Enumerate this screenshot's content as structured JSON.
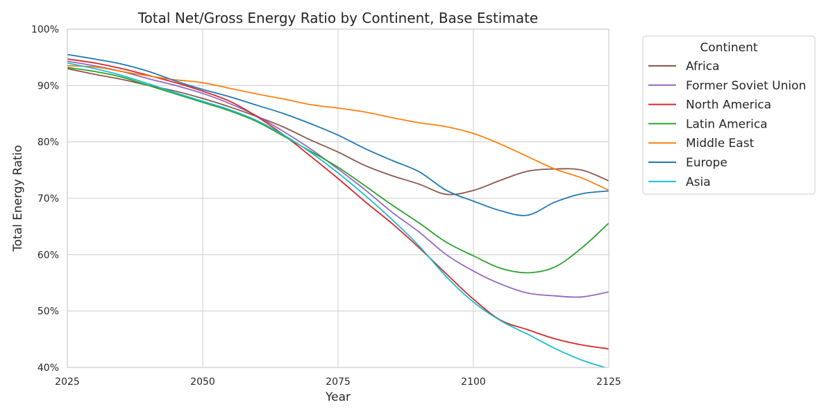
{
  "chart_data": {
    "type": "line",
    "title": "Total Net/Gross Energy Ratio by Continent, Base Estimate",
    "xlabel": "Year",
    "ylabel": "Total Energy Ratio",
    "xlim": [
      2025,
      2125
    ],
    "ylim": [
      0.4,
      1.0
    ],
    "xticks": [
      2025,
      2050,
      2075,
      2100,
      2125
    ],
    "xtick_labels": [
      "2025",
      "2050",
      "2075",
      "2100",
      "2125"
    ],
    "yticks": [
      0.4,
      0.5,
      0.6,
      0.7,
      0.8,
      0.9,
      1.0
    ],
    "ytick_labels": [
      "40%",
      "50%",
      "60%",
      "70%",
      "80%",
      "90%",
      "100%"
    ],
    "grid": true,
    "legend": {
      "title": "Continent",
      "placement": "outside-right"
    },
    "x": [
      2025,
      2030,
      2035,
      2040,
      2045,
      2050,
      2055,
      2060,
      2065,
      2070,
      2075,
      2080,
      2085,
      2090,
      2095,
      2100,
      2105,
      2110,
      2115,
      2120,
      2125
    ],
    "series": [
      {
        "name": "Africa",
        "color": "#8c564b",
        "values": [
          0.93,
          0.92,
          0.911,
          0.9,
          0.89,
          0.877,
          0.862,
          0.845,
          0.826,
          0.803,
          0.782,
          0.758,
          0.74,
          0.725,
          0.707,
          0.714,
          0.732,
          0.748,
          0.752,
          0.75,
          0.731
        ]
      },
      {
        "name": "Former Soviet Union",
        "color": "#9467bd",
        "values": [
          0.943,
          0.935,
          0.925,
          0.912,
          0.9,
          0.886,
          0.868,
          0.846,
          0.818,
          0.787,
          0.752,
          0.715,
          0.675,
          0.64,
          0.6,
          0.571,
          0.548,
          0.532,
          0.527,
          0.525,
          0.534
        ]
      },
      {
        "name": "North America",
        "color": "#d62728",
        "values": [
          0.947,
          0.94,
          0.93,
          0.918,
          0.905,
          0.89,
          0.872,
          0.845,
          0.812,
          0.774,
          0.735,
          0.694,
          0.655,
          0.612,
          0.566,
          0.521,
          0.484,
          0.467,
          0.451,
          0.44,
          0.433
        ]
      },
      {
        "name": "Latin America",
        "color": "#2ca02c",
        "values": [
          0.932,
          0.925,
          0.915,
          0.9,
          0.885,
          0.87,
          0.855,
          0.836,
          0.81,
          0.783,
          0.755,
          0.722,
          0.688,
          0.656,
          0.622,
          0.598,
          0.576,
          0.568,
          0.578,
          0.612,
          0.656
        ]
      },
      {
        "name": "Middle East",
        "color": "#ff7f0e",
        "values": [
          0.935,
          0.933,
          0.925,
          0.917,
          0.91,
          0.905,
          0.895,
          0.885,
          0.876,
          0.866,
          0.86,
          0.853,
          0.843,
          0.834,
          0.827,
          0.815,
          0.796,
          0.774,
          0.752,
          0.736,
          0.714
        ]
      },
      {
        "name": "Europe",
        "color": "#1f77b4",
        "values": [
          0.955,
          0.947,
          0.938,
          0.925,
          0.908,
          0.893,
          0.88,
          0.865,
          0.85,
          0.832,
          0.812,
          0.788,
          0.767,
          0.747,
          0.714,
          0.695,
          0.678,
          0.67,
          0.693,
          0.708,
          0.713
        ]
      },
      {
        "name": "Asia",
        "color": "#17becf",
        "values": [
          0.94,
          0.93,
          0.918,
          0.903,
          0.887,
          0.872,
          0.857,
          0.838,
          0.812,
          0.781,
          0.745,
          0.705,
          0.662,
          0.615,
          0.561,
          0.516,
          0.483,
          0.459,
          0.434,
          0.413,
          0.398
        ]
      }
    ]
  }
}
